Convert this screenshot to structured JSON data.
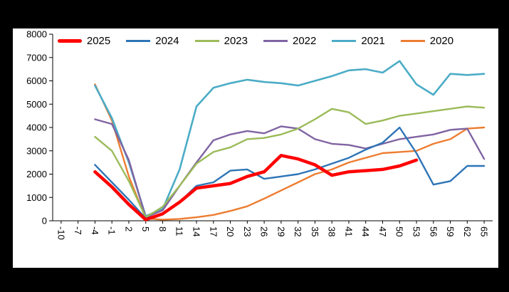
{
  "chart": {
    "outer_background": "#000000",
    "plot_background": "#ffffff",
    "axis_color": "#000000"
  },
  "chart_data": {
    "type": "line",
    "title": "",
    "xlabel": "",
    "ylabel": "",
    "legend_position": "top",
    "grid": false,
    "xlim": [
      -11.5,
      66.5
    ],
    "ylim": [
      0,
      8000
    ],
    "x_ticks": [
      -10,
      -7,
      -4,
      -1,
      2,
      5,
      8,
      11,
      14,
      17,
      20,
      23,
      26,
      29,
      32,
      35,
      38,
      41,
      44,
      47,
      50,
      53,
      56,
      59,
      62,
      65
    ],
    "y_ticks": [
      0,
      1000,
      2000,
      3000,
      4000,
      5000,
      6000,
      7000,
      8000
    ],
    "x_label_rotation": 90,
    "x": [
      -4,
      -1,
      2,
      5,
      8,
      11,
      14,
      17,
      20,
      23,
      26,
      29,
      32,
      35,
      38,
      41,
      44,
      47,
      50,
      53,
      56,
      59,
      62,
      65
    ],
    "series": [
      {
        "name": "2025",
        "color": "#ff0000",
        "width": 4.5,
        "values": [
          2100,
          1450,
          700,
          50,
          300,
          800,
          1400,
          1500,
          1600,
          1900,
          2100,
          2800,
          2650,
          2400,
          1950,
          2100,
          2150,
          2200,
          2350,
          2600,
          null,
          null,
          null,
          null
        ]
      },
      {
        "name": "2024",
        "color": "#2e75b6",
        "width": 2.4,
        "values": [
          2400,
          1650,
          900,
          100,
          300,
          800,
          1500,
          1650,
          2150,
          2200,
          1800,
          1900,
          2000,
          2200,
          2450,
          2700,
          3050,
          3350,
          4000,
          2900,
          1550,
          1700,
          2350,
          2350
        ]
      },
      {
        "name": "2023",
        "color": "#9bbb59",
        "width": 2.4,
        "values": [
          3600,
          3000,
          1700,
          150,
          600,
          1500,
          2450,
          2950,
          3150,
          3500,
          3550,
          3700,
          3950,
          4350,
          4800,
          4650,
          4150,
          4300,
          4500,
          4600,
          4700,
          4800,
          4900,
          4850
        ]
      },
      {
        "name": "2022",
        "color": "#8064a2",
        "width": 2.4,
        "values": [
          4350,
          4150,
          2600,
          150,
          450,
          1500,
          2500,
          3450,
          3700,
          3850,
          3750,
          4050,
          3950,
          3500,
          3300,
          3250,
          3100,
          3300,
          3500,
          3600,
          3700,
          3900,
          3950,
          2650
        ]
      },
      {
        "name": "2021",
        "color": "#4bacc6",
        "width": 2.6,
        "values": [
          5800,
          4400,
          2500,
          200,
          500,
          2200,
          4900,
          5700,
          5900,
          6050,
          5950,
          5900,
          5800,
          6000,
          6200,
          6450,
          6500,
          6350,
          6850,
          5850,
          5400,
          6300,
          6250,
          6300
        ]
      },
      {
        "name": "2020",
        "color": "#ed7d31",
        "width": 2.4,
        "values": [
          5850,
          4300,
          1900,
          100,
          50,
          80,
          150,
          250,
          420,
          620,
          950,
          1300,
          1650,
          2000,
          2200,
          2500,
          2700,
          2900,
          2950,
          3000,
          3300,
          3500,
          3950,
          4000
        ]
      }
    ]
  }
}
